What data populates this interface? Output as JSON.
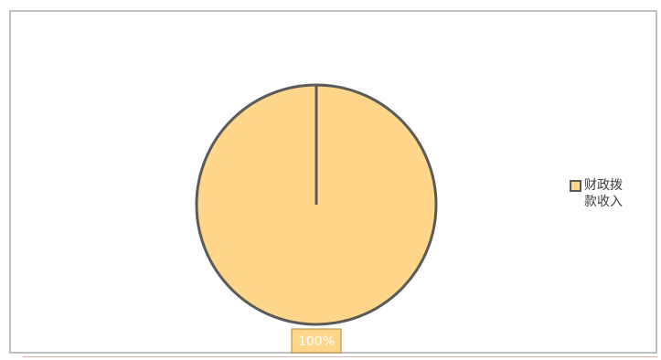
{
  "chart_data": {
    "type": "pie",
    "title": "",
    "slices": [
      {
        "label": "财政拨款收入",
        "value": 100,
        "data_label": "100%",
        "color": "#ffd68a"
      }
    ],
    "legend": {
      "placement": "right"
    },
    "colors": {
      "slice_border": "#5a5a5a",
      "label_bg": "#ffd68a",
      "label_border": "#b38a3a",
      "label_text": "#ffffff"
    }
  }
}
